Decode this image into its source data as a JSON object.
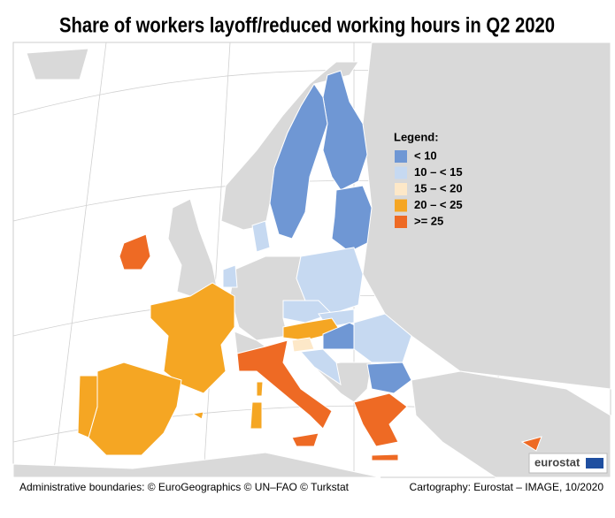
{
  "title": "Share of workers layoff/reduced working hours in Q2 2020",
  "legend": {
    "title": "Legend:",
    "items": [
      {
        "label": "< 10",
        "color": "#6f97d4"
      },
      {
        "label": "10 – < 15",
        "color": "#c6d9f1"
      },
      {
        "label": "15 – < 20",
        "color": "#fde8c8"
      },
      {
        "label": "20 – < 25",
        "color": "#f5a623"
      },
      {
        "label": ">= 25",
        "color": "#ee6a24"
      }
    ]
  },
  "logo": "eurostat",
  "footer": {
    "left": "Administrative boundaries: © EuroGeographics © UN–FAO © Turkstat",
    "right": "Cartography: Eurostat – IMAGE, 10/2020"
  }
}
